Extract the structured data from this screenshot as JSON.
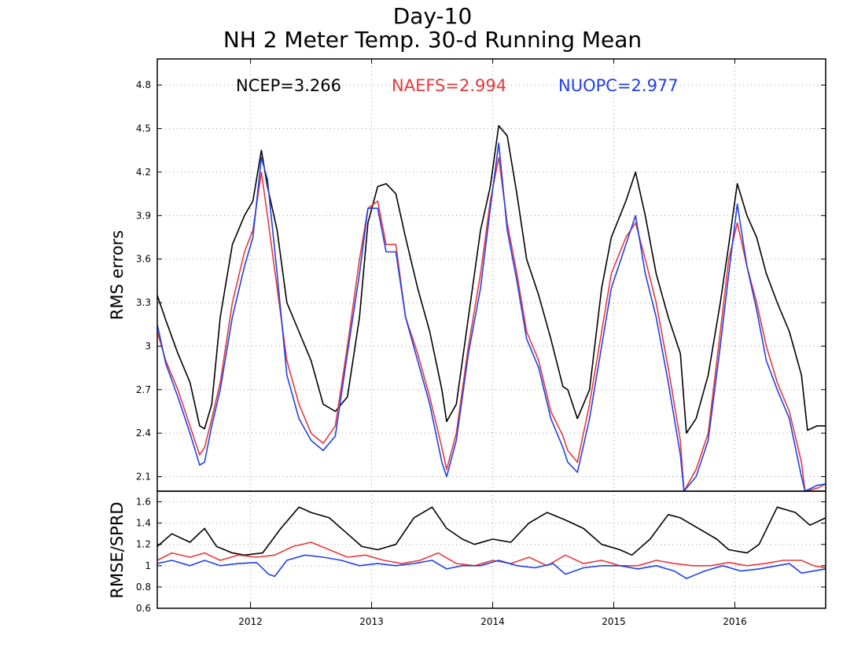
{
  "title": "Day-10",
  "subtitle": "NH 2 Meter Temp. 30-d Running Mean",
  "colors": {
    "NCEP": "#000000",
    "NAEFS": "#e8383a",
    "NUOPC": "#2040e8",
    "grid": "#9a9a9a"
  },
  "annotations": [
    {
      "text": "NCEP=3.266",
      "series": "NCEP"
    },
    {
      "text": "NAEFS=2.994",
      "series": "NAEFS"
    },
    {
      "text": "NUOPC=2.977",
      "series": "NUOPC"
    }
  ],
  "chart_data": [
    {
      "type": "line",
      "title": "Day-10",
      "subtitle": "NH 2 Meter Temp. 30-d Running Mean",
      "ylabel": "RMS errors",
      "xlim": [
        2011.23,
        2016.75
      ],
      "ylim": [
        2.0,
        4.98
      ],
      "yticks": [
        "4.8",
        "4.5",
        "4.2",
        "3.9",
        "3.6",
        "3.3",
        "3",
        "2.7",
        "2.4",
        "2.1"
      ],
      "ytick_values": [
        4.8,
        4.5,
        4.2,
        3.9,
        3.6,
        3.3,
        3.0,
        2.7,
        2.4,
        2.1
      ],
      "grid": true,
      "series": [
        {
          "name": "NCEP",
          "x": [
            2011.23,
            2011.3,
            2011.4,
            2011.5,
            2011.58,
            2011.62,
            2011.68,
            2011.75,
            2011.85,
            2011.95,
            2012.02,
            2012.09,
            2012.14,
            2012.22,
            2012.3,
            2012.4,
            2012.5,
            2012.6,
            2012.7,
            2012.8,
            2012.9,
            2012.97,
            2013.05,
            2013.12,
            2013.2,
            2013.28,
            2013.38,
            2013.48,
            2013.58,
            2013.62,
            2013.7,
            2013.8,
            2013.9,
            2013.98,
            2014.05,
            2014.12,
            2014.2,
            2014.28,
            2014.38,
            2014.48,
            2014.58,
            2014.62,
            2014.7,
            2014.8,
            2014.9,
            2014.98,
            2015.1,
            2015.18,
            2015.26,
            2015.35,
            2015.45,
            2015.55,
            2015.6,
            2015.68,
            2015.78,
            2015.88,
            2015.95,
            2016.02,
            2016.1,
            2016.18,
            2016.26,
            2016.35,
            2016.45,
            2016.55,
            2016.6,
            2016.68,
            2016.75
          ],
          "y": [
            3.35,
            3.18,
            2.95,
            2.75,
            2.45,
            2.43,
            2.6,
            3.2,
            3.7,
            3.9,
            4.0,
            4.35,
            4.1,
            3.8,
            3.3,
            3.1,
            2.9,
            2.6,
            2.55,
            2.65,
            3.2,
            3.85,
            4.1,
            4.12,
            4.05,
            3.75,
            3.4,
            3.1,
            2.7,
            2.48,
            2.6,
            3.2,
            3.8,
            4.1,
            4.52,
            4.45,
            4.05,
            3.6,
            3.35,
            3.05,
            2.72,
            2.7,
            2.5,
            2.7,
            3.4,
            3.75,
            4.0,
            4.2,
            3.9,
            3.5,
            3.2,
            2.95,
            2.4,
            2.5,
            2.8,
            3.3,
            3.7,
            4.12,
            3.9,
            3.75,
            3.5,
            3.3,
            3.1,
            2.8,
            2.42,
            2.45,
            2.45
          ]
        },
        {
          "name": "NAEFS",
          "x": [
            2011.23,
            2011.3,
            2011.4,
            2011.5,
            2011.58,
            2011.62,
            2011.68,
            2011.75,
            2011.85,
            2011.95,
            2012.02,
            2012.09,
            2012.14,
            2012.22,
            2012.3,
            2012.4,
            2012.5,
            2012.6,
            2012.7,
            2012.8,
            2012.9,
            2012.97,
            2013.05,
            2013.12,
            2013.2,
            2013.28,
            2013.38,
            2013.48,
            2013.58,
            2013.62,
            2013.7,
            2013.8,
            2013.9,
            2013.98,
            2014.05,
            2014.12,
            2014.2,
            2014.28,
            2014.38,
            2014.48,
            2014.58,
            2014.62,
            2014.7,
            2014.8,
            2014.9,
            2014.98,
            2015.1,
            2015.18,
            2015.26,
            2015.35,
            2015.45,
            2015.55,
            2015.58,
            2015.68,
            2015.78,
            2015.88,
            2015.95,
            2016.02,
            2016.1,
            2016.18,
            2016.26,
            2016.35,
            2016.45,
            2016.55,
            2016.58,
            2016.68,
            2016.75
          ],
          "y": [
            3.1,
            2.9,
            2.7,
            2.45,
            2.25,
            2.3,
            2.5,
            2.75,
            3.3,
            3.65,
            3.8,
            4.2,
            3.9,
            3.4,
            2.9,
            2.6,
            2.4,
            2.33,
            2.45,
            3.0,
            3.6,
            3.95,
            4.0,
            3.7,
            3.7,
            3.2,
            2.95,
            2.65,
            2.3,
            2.15,
            2.4,
            3.0,
            3.5,
            4.0,
            4.3,
            3.85,
            3.5,
            3.1,
            2.9,
            2.55,
            2.38,
            2.28,
            2.2,
            2.6,
            3.1,
            3.5,
            3.75,
            3.85,
            3.6,
            3.3,
            2.85,
            2.35,
            2.0,
            2.15,
            2.4,
            3.1,
            3.6,
            3.85,
            3.55,
            3.3,
            3.0,
            2.75,
            2.55,
            2.2,
            2.0,
            2.02,
            2.05
          ]
        },
        {
          "name": "NUOPC",
          "x": [
            2011.23,
            2011.3,
            2011.4,
            2011.5,
            2011.58,
            2011.62,
            2011.68,
            2011.75,
            2011.85,
            2011.95,
            2012.02,
            2012.09,
            2012.14,
            2012.22,
            2012.3,
            2012.4,
            2012.5,
            2012.6,
            2012.7,
            2012.8,
            2012.9,
            2012.97,
            2013.05,
            2013.12,
            2013.2,
            2013.28,
            2013.38,
            2013.48,
            2013.58,
            2013.62,
            2013.7,
            2013.8,
            2013.9,
            2013.98,
            2014.05,
            2014.12,
            2014.2,
            2014.28,
            2014.38,
            2014.48,
            2014.58,
            2014.62,
            2014.7,
            2014.8,
            2014.9,
            2014.98,
            2015.1,
            2015.18,
            2015.26,
            2015.35,
            2015.45,
            2015.55,
            2015.58,
            2015.68,
            2015.78,
            2015.88,
            2015.95,
            2016.02,
            2016.1,
            2016.18,
            2016.26,
            2016.35,
            2016.45,
            2016.55,
            2016.58,
            2016.68,
            2016.75
          ],
          "y": [
            3.15,
            2.88,
            2.65,
            2.4,
            2.18,
            2.2,
            2.45,
            2.7,
            3.2,
            3.55,
            3.75,
            4.3,
            4.15,
            3.5,
            2.8,
            2.5,
            2.35,
            2.28,
            2.38,
            2.95,
            3.5,
            3.95,
            3.95,
            3.65,
            3.65,
            3.2,
            2.9,
            2.6,
            2.2,
            2.1,
            2.35,
            2.95,
            3.4,
            3.95,
            4.4,
            3.8,
            3.45,
            3.05,
            2.85,
            2.5,
            2.3,
            2.2,
            2.13,
            2.5,
            3.0,
            3.4,
            3.7,
            3.9,
            3.5,
            3.2,
            2.75,
            2.25,
            1.98,
            2.1,
            2.35,
            3.0,
            3.5,
            3.98,
            3.55,
            3.25,
            2.9,
            2.7,
            2.5,
            2.1,
            2.0,
            2.04,
            2.05
          ]
        }
      ]
    },
    {
      "type": "line",
      "ylabel": "RMSE/SPRD",
      "xlim": [
        2011.23,
        2016.75
      ],
      "ylim": [
        0.6,
        1.7
      ],
      "yticks": [
        "1.6",
        "1.4",
        "1.2",
        "1",
        "0.8",
        "0.6"
      ],
      "ytick_values": [
        1.6,
        1.4,
        1.2,
        1.0,
        0.8,
        0.6
      ],
      "xticks": [
        "2012",
        "2013",
        "2014",
        "2015",
        "2016"
      ],
      "xtick_values": [
        2012,
        2013,
        2014,
        2015,
        2016
      ],
      "grid": true,
      "series": [
        {
          "name": "NCEP",
          "x": [
            2011.23,
            2011.35,
            2011.5,
            2011.62,
            2011.72,
            2011.85,
            2011.95,
            2012.1,
            2012.25,
            2012.4,
            2012.5,
            2012.65,
            2012.8,
            2012.92,
            2013.05,
            2013.2,
            2013.35,
            2013.5,
            2013.62,
            2013.75,
            2013.85,
            2014.0,
            2014.15,
            2014.3,
            2014.45,
            2014.6,
            2014.75,
            2014.9,
            2015.05,
            2015.15,
            2015.3,
            2015.45,
            2015.55,
            2015.7,
            2015.85,
            2015.95,
            2016.1,
            2016.2,
            2016.35,
            2016.5,
            2016.62,
            2016.75
          ],
          "y": [
            1.18,
            1.3,
            1.22,
            1.35,
            1.18,
            1.12,
            1.1,
            1.12,
            1.35,
            1.55,
            1.5,
            1.45,
            1.3,
            1.18,
            1.15,
            1.2,
            1.45,
            1.55,
            1.35,
            1.25,
            1.2,
            1.25,
            1.22,
            1.4,
            1.5,
            1.43,
            1.35,
            1.2,
            1.15,
            1.1,
            1.25,
            1.48,
            1.45,
            1.35,
            1.25,
            1.15,
            1.12,
            1.2,
            1.55,
            1.5,
            1.38,
            1.45
          ]
        },
        {
          "name": "NAEFS",
          "x": [
            2011.23,
            2011.35,
            2011.5,
            2011.62,
            2011.75,
            2011.9,
            2012.05,
            2012.2,
            2012.35,
            2012.5,
            2012.65,
            2012.8,
            2012.95,
            2013.1,
            2013.25,
            2013.4,
            2013.55,
            2013.7,
            2013.85,
            2014.0,
            2014.15,
            2014.3,
            2014.45,
            2014.6,
            2014.75,
            2014.9,
            2015.05,
            2015.2,
            2015.35,
            2015.5,
            2015.65,
            2015.8,
            2015.95,
            2016.1,
            2016.25,
            2016.4,
            2016.55,
            2016.65,
            2016.75
          ],
          "y": [
            1.05,
            1.12,
            1.08,
            1.12,
            1.05,
            1.1,
            1.08,
            1.1,
            1.18,
            1.22,
            1.15,
            1.08,
            1.1,
            1.05,
            1.02,
            1.05,
            1.12,
            1.02,
            1.0,
            1.05,
            1.02,
            1.08,
            1.0,
            1.1,
            1.02,
            1.05,
            1.0,
            1.0,
            1.05,
            1.02,
            1.0,
            1.0,
            1.03,
            1.0,
            1.02,
            1.05,
            1.05,
            1.0,
            0.98
          ]
        },
        {
          "name": "NUOPC",
          "x": [
            2011.23,
            2011.35,
            2011.5,
            2011.62,
            2011.75,
            2011.9,
            2012.05,
            2012.15,
            2012.2,
            2012.3,
            2012.45,
            2012.6,
            2012.75,
            2012.9,
            2013.05,
            2013.2,
            2013.35,
            2013.5,
            2013.62,
            2013.75,
            2013.9,
            2014.05,
            2014.2,
            2014.35,
            2014.5,
            2014.6,
            2014.75,
            2014.9,
            2015.05,
            2015.2,
            2015.35,
            2015.5,
            2015.6,
            2015.75,
            2015.9,
            2016.05,
            2016.2,
            2016.35,
            2016.45,
            2016.55,
            2016.65,
            2016.75
          ],
          "y": [
            1.02,
            1.05,
            1.0,
            1.05,
            1.0,
            1.02,
            1.03,
            0.92,
            0.9,
            1.05,
            1.1,
            1.08,
            1.05,
            1.0,
            1.02,
            1.0,
            1.02,
            1.05,
            0.97,
            1.0,
            1.0,
            1.05,
            1.0,
            0.98,
            1.02,
            0.92,
            0.98,
            1.0,
            1.0,
            0.97,
            1.0,
            0.95,
            0.88,
            0.95,
            1.0,
            0.95,
            0.97,
            1.0,
            1.02,
            0.93,
            0.95,
            0.97
          ]
        }
      ]
    }
  ]
}
